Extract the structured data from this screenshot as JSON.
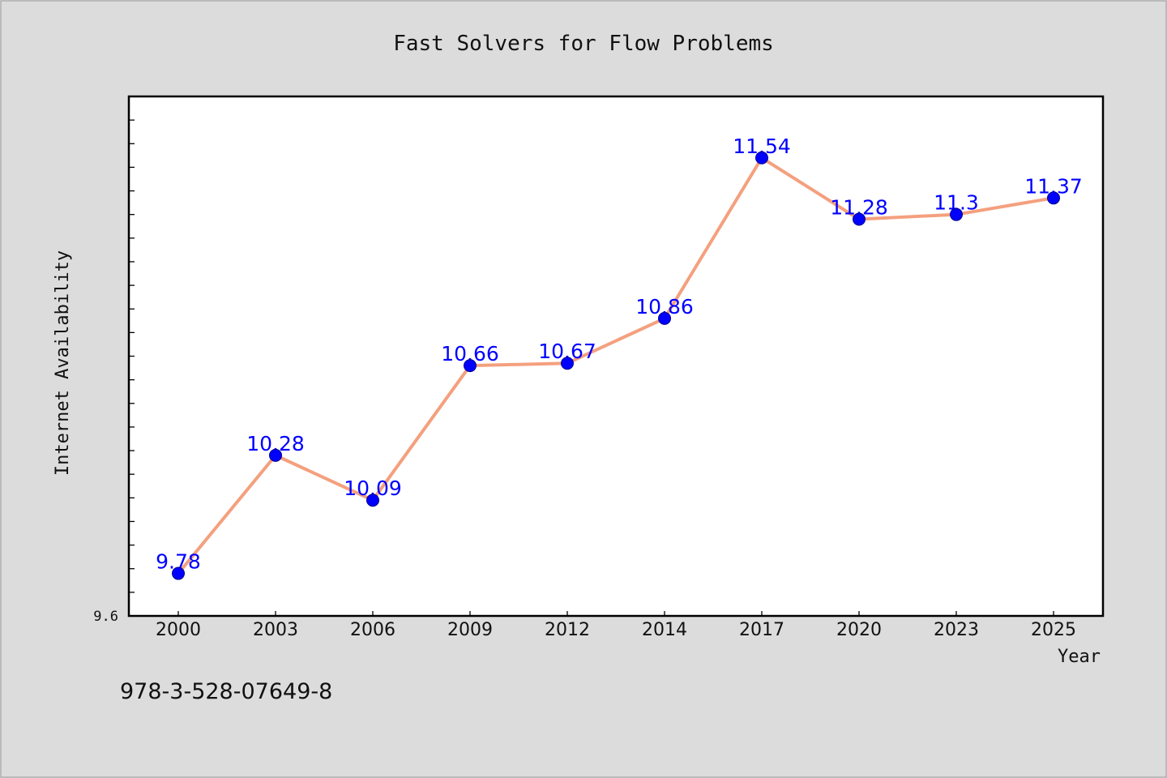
{
  "chart_data": {
    "type": "line",
    "title": "Fast Solvers for Flow Problems",
    "xlabel": "Year",
    "ylabel": "Internet Availability",
    "categories": [
      "2000",
      "2003",
      "2006",
      "2009",
      "2012",
      "2014",
      "2017",
      "2020",
      "2023",
      "2025"
    ],
    "series": [
      {
        "values": [
          9.78,
          10.28,
          10.09,
          10.66,
          10.67,
          10.86,
          11.54,
          11.28,
          11.3,
          11.37
        ],
        "data_labels": [
          "9.78",
          "10.28",
          "10.09",
          "10.66",
          "10.67",
          "10.86",
          "11.54",
          "11.28",
          "11.3",
          "11.37"
        ]
      }
    ],
    "y_tick_labels": [
      "9.6"
    ],
    "ylim": [
      9.6,
      11.8
    ],
    "grid": false,
    "colors": {
      "line": "#f4a07e",
      "marker": "#0000ff",
      "data_label": "#0000ff",
      "background": "#dcdcdc",
      "plot_background": "#ffffff"
    }
  },
  "footer_code": "978-3-528-07649-8"
}
